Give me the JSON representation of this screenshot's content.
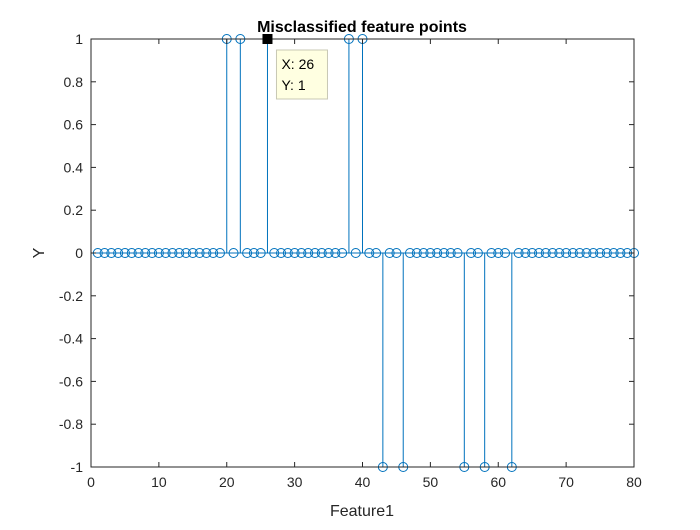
{
  "chart_data": {
    "type": "stem",
    "title": "Misclassified feature points",
    "xlabel": "Feature1",
    "ylabel": "Y",
    "xlim": [
      0,
      80
    ],
    "ylim": [
      -1,
      1
    ],
    "xticks": [
      0,
      10,
      20,
      30,
      40,
      50,
      60,
      70,
      80
    ],
    "yticks": [
      -1,
      -0.8,
      -0.6,
      -0.4,
      -0.2,
      0,
      0.2,
      0.4,
      0.6,
      0.8,
      1
    ],
    "ytick_labels": [
      "-1",
      "-0.8",
      "-0.6",
      "-0.4",
      "-0.2",
      "0",
      "0.2",
      "0.4",
      "0.6",
      "0.8",
      "1"
    ],
    "grid": false,
    "series": [
      {
        "x": [
          1,
          2,
          3,
          4,
          5,
          6,
          7,
          8,
          9,
          10,
          11,
          12,
          13,
          14,
          15,
          16,
          17,
          18,
          19,
          20,
          21,
          22,
          23,
          24,
          25,
          26,
          27,
          28,
          29,
          30,
          31,
          32,
          33,
          34,
          35,
          36,
          37,
          38,
          39,
          40,
          41,
          42,
          43,
          44,
          45,
          46,
          47,
          48,
          49,
          50,
          51,
          52,
          53,
          54,
          55,
          56,
          57,
          58,
          59,
          60,
          61,
          62,
          63,
          64,
          65,
          66,
          67,
          68,
          69,
          70,
          71,
          72,
          73,
          74,
          75,
          76,
          77,
          78,
          79,
          80
        ],
        "y": [
          0,
          0,
          0,
          0,
          0,
          0,
          0,
          0,
          0,
          0,
          0,
          0,
          0,
          0,
          0,
          0,
          0,
          0,
          0,
          1,
          0,
          1,
          0,
          0,
          0,
          1,
          0,
          0,
          0,
          0,
          0,
          0,
          0,
          0,
          0,
          0,
          0,
          1,
          0,
          1,
          0,
          0,
          -1,
          0,
          0,
          -1,
          0,
          0,
          0,
          0,
          0,
          0,
          0,
          0,
          -1,
          0,
          0,
          -1,
          0,
          0,
          0,
          -1,
          0,
          0,
          0,
          0,
          0,
          0,
          0,
          0,
          0,
          0,
          0,
          0,
          0,
          0,
          0,
          0,
          0,
          0
        ],
        "color": "#0072BD"
      }
    ],
    "datatip": {
      "x": 26,
      "y": 1,
      "label_x": "X: 26",
      "label_y": "Y: 1"
    }
  }
}
